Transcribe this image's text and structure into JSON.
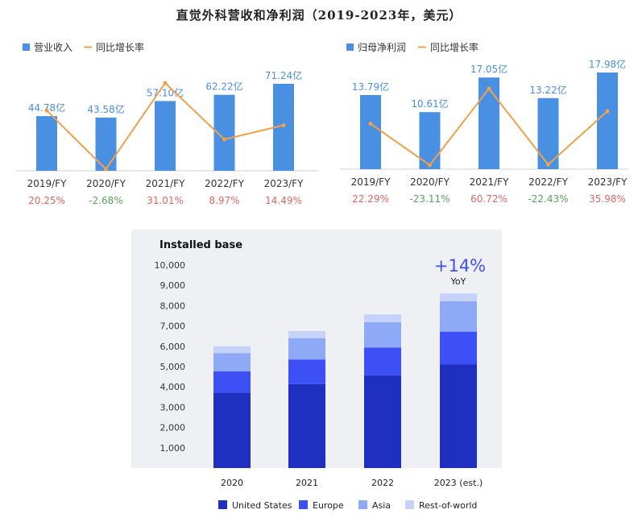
{
  "page": {
    "title": "直觉外科营收和净利润（2019-2023年，美元）"
  },
  "colors": {
    "bar": "#4a90e2",
    "line": "#f0a04b",
    "positive": "#e06666",
    "negative": "#5aa05a",
    "us": "#1f2fbf",
    "europe": "#3d50f5",
    "asia": "#8ea9f5",
    "rest": "#c5d3fa",
    "yoy": "#3d50f5"
  },
  "chart_data": [
    {
      "type": "bar",
      "title": "",
      "legend": {
        "bar_label": "营业收入",
        "line_label": "同比增长率",
        "placement": "top-left"
      },
      "categories": [
        "2019/FY",
        "2020/FY",
        "2021/FY",
        "2022/FY",
        "2023/FY"
      ],
      "series": [
        {
          "name": "营业收入",
          "values": [
            44.78,
            43.58,
            57.1,
            62.22,
            71.24
          ],
          "value_labels": [
            "44.78亿",
            "43.58亿",
            "57.10亿",
            "62.22亿",
            "71.24亿"
          ]
        },
        {
          "name": "同比增长率",
          "type": "line",
          "values": [
            20.25,
            -2.68,
            31.01,
            8.97,
            14.49
          ],
          "value_labels": [
            "20.25%",
            "-2.68%",
            "31.01%",
            "8.97%",
            "14.49%"
          ]
        }
      ]
    },
    {
      "type": "bar",
      "title": "",
      "legend": {
        "bar_label": "归母净利润",
        "line_label": "同比增长率",
        "placement": "top-left"
      },
      "categories": [
        "2019/FY",
        "2020/FY",
        "2021/FY",
        "2022/FY",
        "2023/FY"
      ],
      "series": [
        {
          "name": "归母净利润",
          "values": [
            13.79,
            10.61,
            17.05,
            13.22,
            17.98
          ],
          "value_labels": [
            "13.79亿",
            "10.61亿",
            "17.05亿",
            "13.22亿",
            "17.98亿"
          ]
        },
        {
          "name": "同比增长率",
          "type": "line",
          "values": [
            22.29,
            -23.11,
            60.72,
            -22.43,
            35.98
          ],
          "value_labels": [
            "22.29%",
            "-23.11%",
            "60.72%",
            "-22.43%",
            "35.98%"
          ]
        }
      ]
    },
    {
      "type": "bar",
      "stacked": true,
      "title": "Installed base",
      "categories": [
        "2020",
        "2021",
        "2022",
        "2023 (est.)"
      ],
      "ylim": [
        0,
        10000
      ],
      "yticks": [
        "1,000",
        "2,000",
        "3,000",
        "4,000",
        "5,000",
        "6,000",
        "7,000",
        "8,000",
        "9,000",
        "10,000"
      ],
      "ytick_values": [
        1000,
        2000,
        3000,
        4000,
        5000,
        6000,
        7000,
        8000,
        9000,
        10000
      ],
      "series": [
        {
          "name": "United States",
          "values": [
            3720,
            4130,
            4570,
            5100
          ]
        },
        {
          "name": "Europe",
          "values": [
            1040,
            1220,
            1370,
            1620
          ]
        },
        {
          "name": "Asia",
          "values": [
            900,
            1050,
            1250,
            1500
          ]
        },
        {
          "name": "Rest-of-world",
          "values": [
            340,
            350,
            380,
            380
          ]
        }
      ],
      "annotation": {
        "value": "+14%",
        "label": "YoY"
      },
      "legend_placement": "bottom",
      "grid": false
    }
  ]
}
